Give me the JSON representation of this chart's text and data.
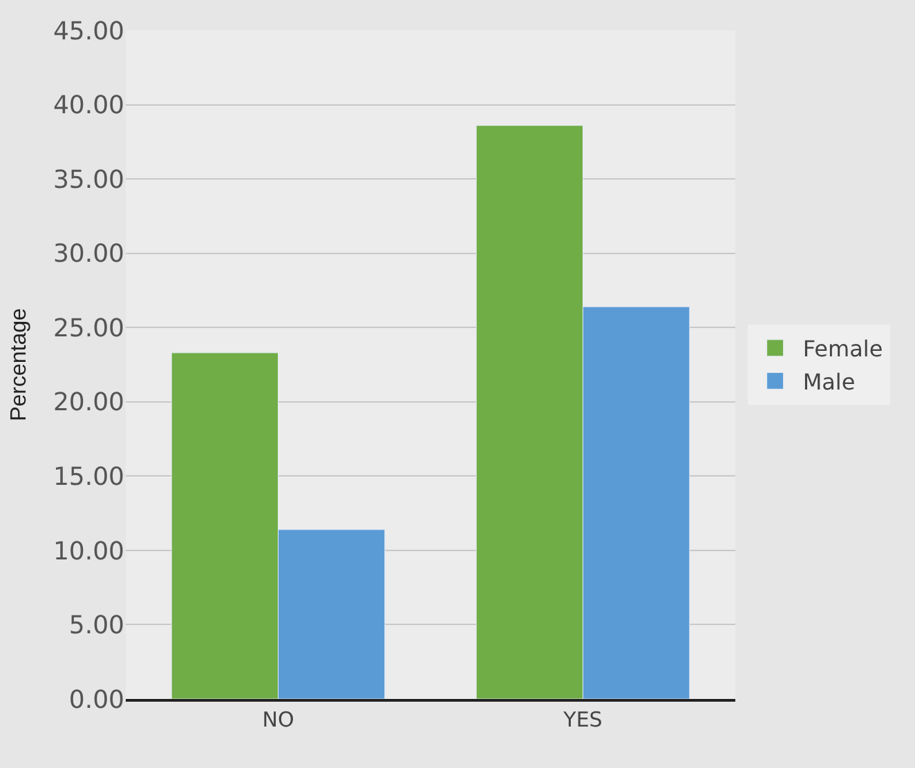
{
  "chart_data": {
    "type": "bar",
    "ylabel": "Percentage",
    "categories": [
      "NO",
      "YES"
    ],
    "series": [
      {
        "name": "Female",
        "color": "#70ad47",
        "values": [
          23.3,
          38.6
        ]
      },
      {
        "name": "Male",
        "color": "#5b9bd5",
        "values": [
          11.4,
          26.4
        ]
      }
    ],
    "ylim": [
      0,
      45
    ],
    "yticks": [
      {
        "value": 0,
        "label": "0.00"
      },
      {
        "value": 5,
        "label": "5.00"
      },
      {
        "value": 10,
        "label": "10.00"
      },
      {
        "value": 15,
        "label": "15.00"
      },
      {
        "value": 20,
        "label": "20.00"
      },
      {
        "value": 25,
        "label": "25.00"
      },
      {
        "value": 30,
        "label": "30.00"
      },
      {
        "value": 35,
        "label": "35.00"
      },
      {
        "value": 40,
        "label": "40.00"
      },
      {
        "value": 45,
        "label": "45.00"
      }
    ],
    "grid": "y",
    "legend": "right"
  }
}
